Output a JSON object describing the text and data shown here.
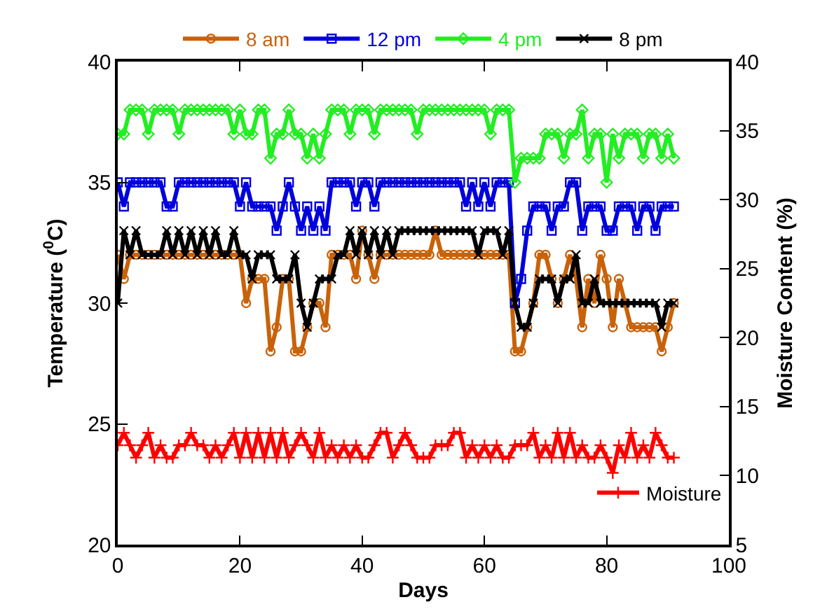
{
  "chart_data": {
    "type": "line",
    "xlabel": "Days",
    "ylabel": "Temperature ($^{0}$C)",
    "y2label": "Moisture Content (%)",
    "x": [
      0,
      1,
      2,
      3,
      4,
      5,
      6,
      7,
      8,
      9,
      10,
      11,
      12,
      13,
      14,
      15,
      16,
      17,
      18,
      19,
      20,
      21,
      22,
      23,
      24,
      25,
      26,
      27,
      28,
      29,
      30,
      31,
      32,
      33,
      34,
      35,
      36,
      37,
      38,
      39,
      40,
      41,
      42,
      43,
      44,
      45,
      46,
      47,
      48,
      49,
      50,
      51,
      52,
      53,
      54,
      55,
      56,
      57,
      58,
      59,
      60,
      61,
      62,
      63,
      64,
      65,
      66,
      67,
      68,
      69,
      70,
      71,
      72,
      73,
      74,
      75,
      76,
      77,
      78,
      79,
      80,
      81,
      82,
      83,
      84,
      85,
      86,
      87,
      88,
      89,
      90,
      91
    ],
    "series": [
      {
        "name": "8 am",
        "color": "#c8620a",
        "marker": "circle",
        "values": [
          32,
          31,
          32,
          32,
          32,
          32,
          32,
          32,
          32,
          32,
          32,
          32,
          32,
          32,
          32,
          32,
          32,
          32,
          32,
          32,
          32,
          30,
          31,
          31,
          31,
          28,
          29,
          31,
          31,
          28,
          28,
          29,
          30,
          30,
          29,
          32,
          32,
          32,
          32,
          31,
          33,
          32,
          31,
          32,
          32,
          32,
          32,
          32,
          32,
          32,
          32,
          32,
          33,
          32,
          32,
          32,
          32,
          32,
          32,
          32,
          32,
          32,
          32,
          32,
          32,
          28,
          28,
          29,
          30,
          32,
          32,
          31,
          30,
          31,
          32,
          31,
          29,
          31,
          30,
          32,
          31,
          29,
          31,
          30,
          29,
          29,
          29,
          29,
          29,
          28,
          29,
          30
        ]
      },
      {
        "name": "12 pm",
        "color": "#0000dd",
        "marker": "square",
        "values": [
          35,
          34,
          35,
          35,
          35,
          35,
          35,
          35,
          34,
          34,
          35,
          35,
          35,
          35,
          35,
          35,
          35,
          35,
          35,
          35,
          34,
          35,
          34,
          34,
          34,
          34,
          33,
          34,
          35,
          34,
          33,
          34,
          33,
          34,
          33,
          35,
          35,
          35,
          35,
          34,
          35,
          35,
          34,
          35,
          35,
          35,
          35,
          35,
          35,
          35,
          35,
          35,
          35,
          35,
          35,
          35,
          35,
          34,
          35,
          34,
          35,
          34,
          35,
          35,
          35,
          30,
          31,
          33,
          34,
          34,
          34,
          33,
          34,
          34,
          35,
          35,
          33,
          34,
          34,
          34,
          33,
          33,
          34,
          34,
          34,
          33,
          34,
          34,
          33,
          34,
          34,
          34
        ]
      },
      {
        "name": "4 pm",
        "color": "#22ee22",
        "marker": "diamond",
        "values": [
          37,
          37,
          38,
          38,
          38,
          37,
          38,
          38,
          38,
          38,
          37,
          38,
          38,
          38,
          38,
          38,
          38,
          38,
          38,
          37,
          38,
          37,
          37,
          38,
          38,
          36,
          37,
          37,
          38,
          37,
          37,
          36,
          37,
          36,
          37,
          38,
          38,
          38,
          37,
          38,
          38,
          38,
          37,
          38,
          38,
          38,
          38,
          38,
          38,
          37,
          38,
          38,
          38,
          38,
          38,
          38,
          38,
          38,
          38,
          38,
          38,
          37,
          38,
          38,
          38,
          35,
          36,
          36,
          36,
          36,
          37,
          37,
          37,
          36,
          37,
          37,
          38,
          36,
          37,
          37,
          35,
          37,
          36,
          37,
          37,
          37,
          36,
          37,
          37,
          36,
          37,
          36
        ]
      },
      {
        "name": "8 pm",
        "color": "#000000",
        "marker": "cross",
        "values": [
          30,
          33,
          32,
          33,
          32,
          32,
          32,
          32,
          33,
          32,
          33,
          32,
          33,
          32,
          33,
          32,
          33,
          32,
          32,
          33,
          32,
          32,
          31,
          32,
          32,
          32,
          31,
          31,
          31,
          32,
          30,
          29,
          30,
          31,
          31,
          31,
          32,
          32,
          33,
          32,
          33,
          32,
          33,
          32,
          33,
          32,
          33,
          33,
          33,
          33,
          33,
          33,
          33,
          33,
          33,
          33,
          33,
          33,
          33,
          32,
          33,
          33,
          33,
          32,
          33,
          30,
          29,
          29,
          30,
          31,
          31,
          31,
          30,
          31,
          31,
          32,
          30,
          30,
          31,
          30,
          30,
          30,
          30,
          30,
          30,
          30,
          30,
          30,
          30,
          29,
          30,
          30
        ]
      },
      {
        "name": "Moisture",
        "color": "#ff0000",
        "marker": "cross",
        "axis": "y2",
        "values": [
          12.2,
          13.1,
          12.2,
          11.3,
          12.2,
          13.1,
          11.3,
          12.2,
          11.3,
          11.3,
          12.2,
          12.2,
          13.1,
          12.2,
          12.2,
          11.3,
          12.2,
          11.3,
          12.2,
          13.1,
          11.3,
          13.1,
          11.3,
          13.1,
          11.3,
          13.1,
          11.3,
          13.1,
          11.3,
          12.2,
          13.1,
          12.2,
          11.3,
          13.1,
          11.3,
          12.2,
          11.3,
          12.2,
          11.3,
          12.2,
          11.3,
          11.3,
          12.2,
          13.1,
          13.1,
          11.3,
          12.2,
          13.1,
          12.2,
          11.3,
          11.3,
          11.3,
          12.2,
          12.2,
          12.2,
          13.1,
          13.1,
          11.3,
          12.2,
          11.3,
          12.2,
          11.3,
          12.2,
          11.3,
          11.3,
          12.2,
          12.2,
          12.2,
          13.1,
          11.3,
          12.2,
          11.3,
          13.1,
          11.3,
          13.1,
          11.3,
          12.2,
          11.3,
          11.3,
          12.2,
          11.3,
          10.2,
          12.2,
          11.3,
          13.1,
          11.3,
          12.2,
          11.3,
          13.1,
          12.2,
          11.3,
          11.3
        ]
      }
    ],
    "xlim": [
      0,
      100
    ],
    "xticks": [
      0,
      20,
      40,
      60,
      80,
      100
    ],
    "ylim": [
      20,
      40
    ],
    "yticks": [
      20,
      25,
      30,
      35,
      40
    ],
    "y2lim": [
      5,
      40
    ],
    "y2ticks": [
      5,
      10,
      15,
      20,
      25,
      30,
      35,
      40
    ],
    "grid": false,
    "legend": "top"
  }
}
